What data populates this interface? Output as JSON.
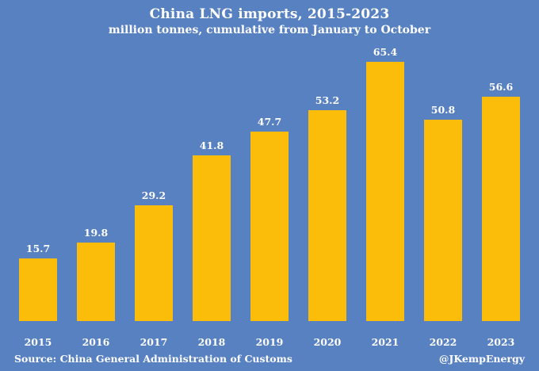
{
  "page": {
    "background_color": "#5881C1",
    "text_color": "#FFFFFF"
  },
  "chart_data": {
    "type": "bar",
    "title": "China LNG imports, 2015-2023",
    "subtitle": "million tonnes, cumulative from January to October",
    "categories": [
      "2015",
      "2016",
      "2017",
      "2018",
      "2019",
      "2020",
      "2021",
      "2022",
      "2023"
    ],
    "values": [
      15.7,
      19.8,
      29.2,
      41.8,
      47.7,
      53.2,
      65.4,
      50.8,
      56.6
    ],
    "xlabel": "",
    "ylabel": "",
    "ylim": [
      0,
      70
    ],
    "grid": false,
    "legend": false,
    "data_labels": true,
    "bar_color": "#FBBD09",
    "label_color": "#FFFFFF"
  },
  "footer": {
    "source": "Source: China General Administration of Customs",
    "handle": "@JKempEnergy"
  }
}
